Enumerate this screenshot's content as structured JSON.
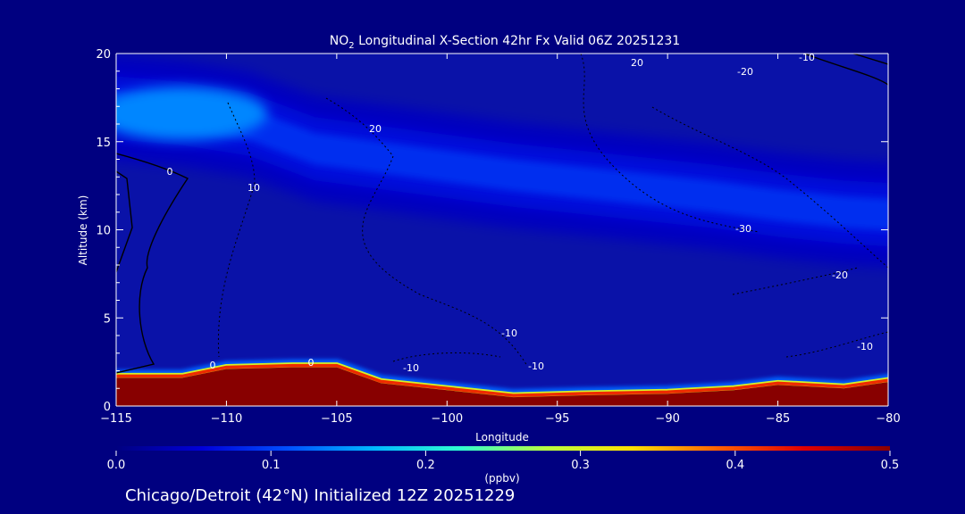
{
  "chart_data": {
    "type": "heatmap",
    "title": {
      "prefix": "NO",
      "subscript": "2",
      "rest": " Longitudinal X-Section 42hr  Fx Valid 06Z 20251231"
    },
    "xlabel": "Longitude",
    "ylabel": "Altitude (km)",
    "xlim": [
      -115,
      -80
    ],
    "ylim": [
      0,
      20
    ],
    "x_ticks": [
      -115,
      -110,
      -105,
      -100,
      -95,
      -90,
      -85,
      -80
    ],
    "y_ticks": [
      0,
      5,
      10,
      15,
      20
    ],
    "colorbar": {
      "label": "(ppbv)",
      "min": 0.0,
      "max": 0.5,
      "ticks": [
        "0.0",
        "0.1",
        "0.2",
        "0.3",
        "0.4",
        "0.5"
      ],
      "colors": [
        "#000080",
        "#0000d8",
        "#0050ff",
        "#00b8ff",
        "#30ffd0",
        "#b8ff40",
        "#ffe000",
        "#ff6000",
        "#e00000",
        "#880000"
      ]
    },
    "no2_layers": [
      {
        "name": "upper-tropospheric maximum",
        "lon": [
          -115,
          -112,
          -109,
          -106,
          -103,
          -100,
          -97,
          -94,
          -91,
          -88,
          -85,
          -82,
          -80
        ],
        "alt_km": [
          17.0,
          16.6,
          16.0,
          14.6,
          14.1,
          13.6,
          13.1,
          12.7,
          12.3,
          11.9,
          11.4,
          11.0,
          10.8
        ],
        "value_ppbv": [
          0.14,
          0.13,
          0.1,
          0.09,
          0.09,
          0.08,
          0.08,
          0.08,
          0.08,
          0.07,
          0.07,
          0.07,
          0.07
        ]
      },
      {
        "name": "surface layer",
        "lon": [
          -115,
          -112,
          -110,
          -107,
          -105,
          -103,
          -100,
          -97,
          -94,
          -90,
          -87,
          -85,
          -82,
          -80
        ],
        "alt_km": [
          1.7,
          1.7,
          2.2,
          2.3,
          2.3,
          1.4,
          1.0,
          0.6,
          0.7,
          0.8,
          1.0,
          1.3,
          1.1,
          1.5
        ],
        "value_ppbv": [
          0.5,
          0.5,
          0.5,
          0.5,
          0.5,
          0.5,
          0.5,
          0.5,
          0.5,
          0.5,
          0.5,
          0.5,
          0.5,
          0.5
        ]
      }
    ],
    "contour_labels": [
      "0",
      "0",
      "0",
      "10",
      "20",
      "20",
      "-10",
      "-10",
      "-20",
      "-10",
      "-30",
      "-20",
      "-10",
      "-10"
    ]
  },
  "footer": {
    "caption": "Chicago/Detroit (42°N) Initialized 12Z 20251229"
  },
  "style": {
    "background": "#000080",
    "text": "#ffffff",
    "contour_line": "#000000"
  }
}
